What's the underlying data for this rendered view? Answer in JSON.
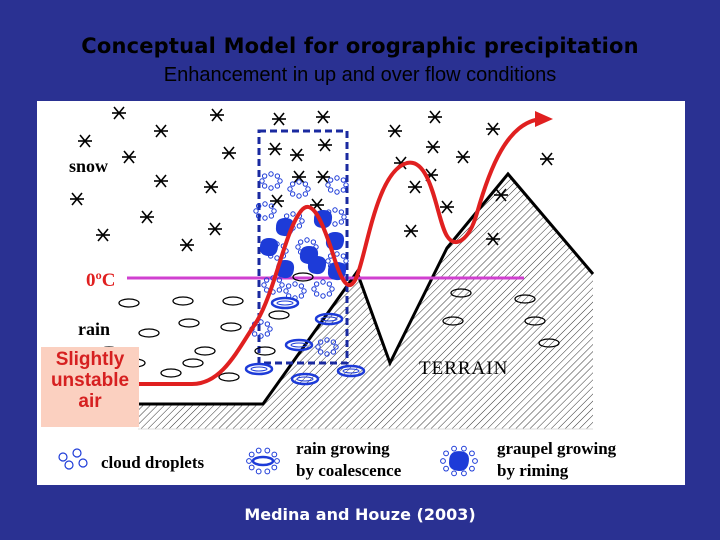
{
  "title": "Conceptual Model for orographic precipitation",
  "subtitle": "Enhancement in up and over flow conditions",
  "credit": "Medina and Houze (2003)",
  "labels": {
    "snow": "snow",
    "freezing_level": "0ºC",
    "rain": "rain",
    "terrain": "TERRAIN",
    "unstable_air": [
      "Slightly",
      "unstable",
      "air"
    ]
  },
  "legend": {
    "cloud_droplets": "cloud droplets",
    "rain_growing": [
      "rain growing",
      "by coalescence"
    ],
    "graupel_growing": [
      "graupel growing",
      "by riming"
    ]
  },
  "colors": {
    "background": "#2a3192",
    "airflow": "#e02020",
    "freezing_line": "#d040d0",
    "unstable_box": "#fbd0c0",
    "unstable_text": "#d62020",
    "hydrometeor": "#1d3bd8",
    "dashed_box": "#1a2aa0"
  },
  "icons": [
    "snowflake-icon",
    "cloud-droplet-icon",
    "raindrop-icon",
    "graupel-icon",
    "arrowhead-icon"
  ]
}
